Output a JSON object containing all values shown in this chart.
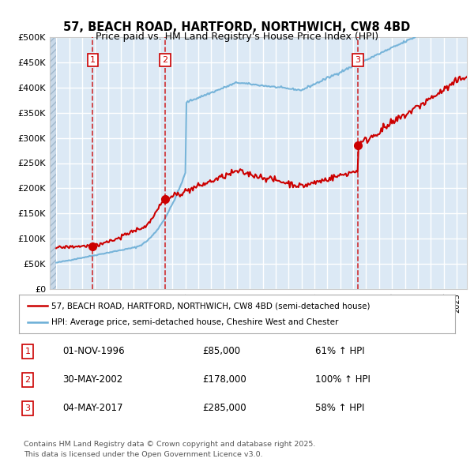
{
  "title_line1": "57, BEACH ROAD, HARTFORD, NORTHWICH, CW8 4BD",
  "title_line2": "Price paid vs. HM Land Registry's House Price Index (HPI)",
  "xlabel": "",
  "ylabel": "",
  "ylim": [
    0,
    500000
  ],
  "yticks": [
    0,
    50000,
    100000,
    150000,
    200000,
    250000,
    300000,
    350000,
    400000,
    450000,
    500000
  ],
  "ytick_labels": [
    "£0",
    "£50K",
    "£100K",
    "£150K",
    "£200K",
    "£250K",
    "£300K",
    "£350K",
    "£400K",
    "£450K",
    "£500K"
  ],
  "xlim_start": 1993.5,
  "xlim_end": 2025.8,
  "background_color": "#ffffff",
  "plot_bg_color": "#dce9f5",
  "hatch_color": "#b0c8e0",
  "grid_color": "#ffffff",
  "sale_dates_year": [
    1996.833,
    2002.41,
    2017.34
  ],
  "sale_prices": [
    85000,
    178000,
    285000
  ],
  "sale_labels": [
    "1",
    "2",
    "3"
  ],
  "sale_info": [
    {
      "num": "1",
      "date": "01-NOV-1996",
      "price": "£85,000",
      "hpi": "61% ↑ HPI"
    },
    {
      "num": "2",
      "date": "30-MAY-2002",
      "price": "£178,000",
      "hpi": "100% ↑ HPI"
    },
    {
      "num": "3",
      "date": "04-MAY-2017",
      "price": "£285,000",
      "hpi": "58% ↑ HPI"
    }
  ],
  "legend_line1": "57, BEACH ROAD, HARTFORD, NORTHWICH, CW8 4BD (semi-detached house)",
  "legend_line2": "HPI: Average price, semi-detached house, Cheshire West and Chester",
  "footer_line1": "Contains HM Land Registry data © Crown copyright and database right 2025.",
  "footer_line2": "This data is licensed under the Open Government Licence v3.0.",
  "red_color": "#cc0000",
  "blue_color": "#6baed6",
  "red_dot_color": "#cc0000",
  "dashed_line_color": "#cc0000"
}
